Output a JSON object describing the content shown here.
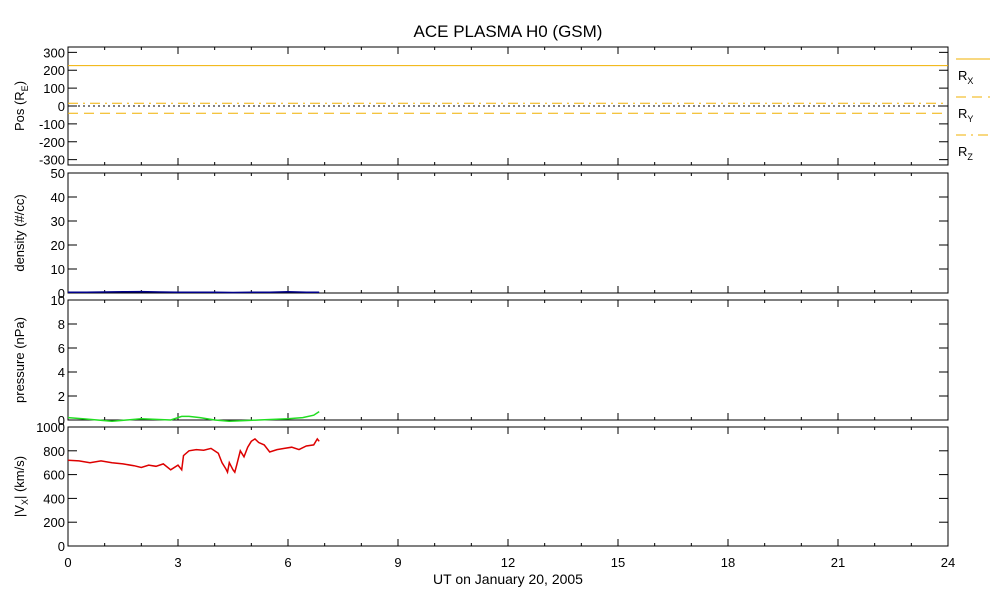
{
  "title": "ACE PLASMA H0 (GSM)",
  "xlabel": "UT on January 20, 2005",
  "x_ticks": [
    0,
    3,
    6,
    9,
    12,
    15,
    18,
    21,
    24
  ],
  "x_tick_labels": [
    "0",
    "3",
    "6",
    "9",
    "12",
    "15",
    "18",
    "21",
    "24"
  ],
  "xlim": [
    0,
    24
  ],
  "colors": {
    "position": "#f0b000",
    "density": "#00008b",
    "pressure": "#22dd22",
    "velocity": "#dd0000",
    "zero_line": "#000000"
  },
  "chart_data": [
    {
      "type": "line",
      "ylabel": "Pos (RE)",
      "ylabel_main": "Pos (R",
      "ylabel_sub": "E",
      "ylabel_end": ")",
      "ylim": [
        -330,
        330
      ],
      "y_ticks": [
        300,
        200,
        100,
        0,
        -100,
        -200,
        -300
      ],
      "y_tick_labels": [
        "300",
        "200",
        "100",
        "0",
        "-100",
        "-200",
        "-300"
      ],
      "legend_position": "right",
      "series": [
        {
          "name": "RX",
          "label_main": "R",
          "label_sub": "X",
          "style": "solid",
          "x": [
            0,
            24
          ],
          "y": [
            226,
            226
          ]
        },
        {
          "name": "RY",
          "label_main": "R",
          "label_sub": "Y",
          "style": "dashed",
          "x": [
            0,
            24
          ],
          "y": [
            -40,
            -40
          ]
        },
        {
          "name": "RZ",
          "label_main": "R",
          "label_sub": "Z",
          "style": "dashdot",
          "x": [
            0,
            24
          ],
          "y": [
            15,
            15
          ]
        }
      ]
    },
    {
      "type": "line",
      "ylabel": "density (#/cc)",
      "ylim": [
        0,
        50
      ],
      "y_ticks": [
        0,
        10,
        20,
        30,
        40,
        50
      ],
      "y_tick_labels": [
        "0",
        "10",
        "20",
        "30",
        "40",
        "50"
      ],
      "series": [
        {
          "x": [
            0,
            0.5,
            1.0,
            1.5,
            2.0,
            2.5,
            3.0,
            3.5,
            4.0,
            4.5,
            5.0,
            5.5,
            6.0,
            6.5,
            6.85
          ],
          "y": [
            0.3,
            0.3,
            0.4,
            0.5,
            0.6,
            0.4,
            0.3,
            0.3,
            0.3,
            0.2,
            0.3,
            0.3,
            0.5,
            0.3,
            0.3
          ]
        }
      ]
    },
    {
      "type": "line",
      "ylabel": "pressure (nPa)",
      "ylim": [
        0,
        10
      ],
      "y_ticks": [
        0,
        2,
        4,
        6,
        8,
        10
      ],
      "y_tick_labels": [
        "0",
        "2",
        "4",
        "6",
        "8",
        "10"
      ],
      "series": [
        {
          "x": [
            0,
            0.4,
            0.8,
            1.2,
            1.6,
            2.0,
            2.4,
            2.8,
            3.1,
            3.3,
            3.6,
            4.0,
            4.4,
            4.8,
            5.2,
            5.6,
            6.0,
            6.4,
            6.7,
            6.85
          ],
          "y": [
            0.2,
            0.1,
            0.0,
            -0.1,
            0.0,
            0.1,
            0.05,
            0.0,
            0.3,
            0.3,
            0.2,
            0.0,
            -0.1,
            -0.05,
            0.0,
            0.05,
            0.1,
            0.2,
            0.4,
            0.7
          ]
        }
      ]
    },
    {
      "type": "line",
      "ylabel": "|VX| (km/s)",
      "ylabel_main": "|V",
      "ylabel_sub": "X",
      "ylabel_end": "| (km/s)",
      "ylim": [
        0,
        1000
      ],
      "y_ticks": [
        0,
        200,
        400,
        600,
        800,
        1000
      ],
      "y_tick_labels": [
        "0",
        "200",
        "400",
        "600",
        "800",
        "1000"
      ],
      "series": [
        {
          "x": [
            0,
            0.3,
            0.6,
            0.9,
            1.2,
            1.5,
            1.8,
            2.0,
            2.2,
            2.4,
            2.6,
            2.8,
            3.0,
            3.1,
            3.15,
            3.3,
            3.5,
            3.7,
            3.9,
            4.1,
            4.2,
            4.3,
            4.35,
            4.4,
            4.5,
            4.55,
            4.6,
            4.7,
            4.8,
            4.9,
            5.0,
            5.1,
            5.2,
            5.35,
            5.5,
            5.7,
            5.9,
            6.1,
            6.3,
            6.5,
            6.7,
            6.8,
            6.85
          ],
          "y": [
            720,
            715,
            700,
            715,
            700,
            690,
            675,
            660,
            680,
            670,
            690,
            640,
            680,
            640,
            760,
            800,
            810,
            805,
            820,
            780,
            700,
            650,
            620,
            700,
            640,
            620,
            680,
            800,
            750,
            830,
            880,
            900,
            870,
            850,
            790,
            810,
            820,
            830,
            810,
            840,
            850,
            900,
            880
          ]
        }
      ]
    }
  ]
}
